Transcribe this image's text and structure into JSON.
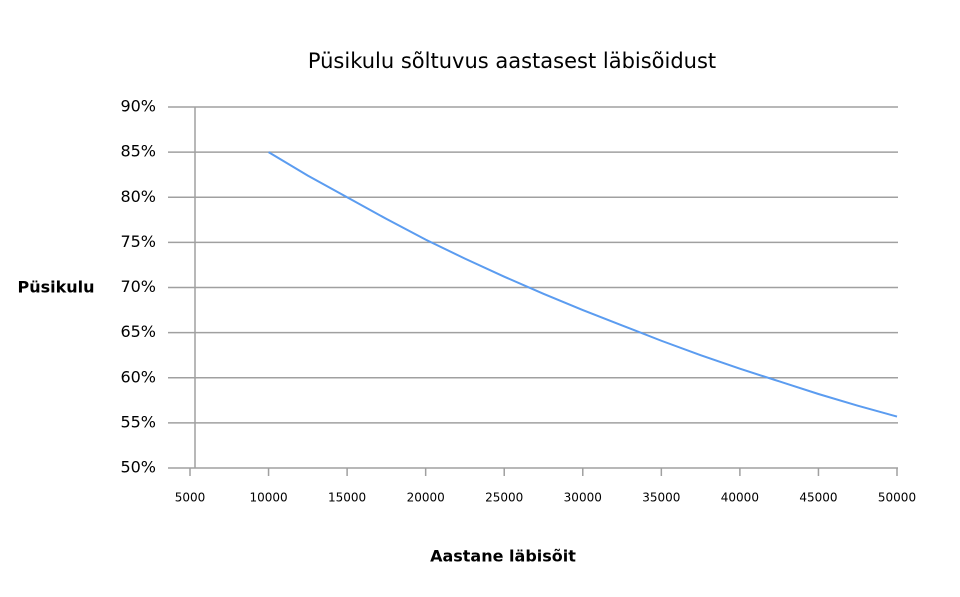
{
  "chart_data": {
    "type": "line",
    "title": "Püsikulu sõltuvus aastasest läbisõidust",
    "x_label": "Aastane läbisõit",
    "y_label": "Püsikulu",
    "x": [
      10000,
      12500,
      15000,
      17500,
      20000,
      22500,
      25000,
      27500,
      30000,
      32500,
      35000,
      37500,
      40000,
      42500,
      45000,
      47500,
      50000
    ],
    "series": [
      {
        "name": "Püsikulu",
        "color": "#5b9cf0",
        "values": [
          85,
          82.4,
          80,
          77.6,
          75.3,
          73.2,
          71.2,
          69.3,
          67.5,
          65.8,
          64.1,
          62.5,
          61.0,
          59.6,
          58.2,
          56.9,
          55.7
        ]
      }
    ],
    "xlim": [
      5000,
      50000
    ],
    "xticks": [
      5000,
      10000,
      15000,
      20000,
      25000,
      30000,
      35000,
      40000,
      45000,
      50000
    ],
    "ylim": [
      50,
      90
    ],
    "yticks": [
      {
        "value": 50,
        "label": "50%"
      },
      {
        "value": 55,
        "label": "55%"
      },
      {
        "value": 60,
        "label": "60%"
      },
      {
        "value": 65,
        "label": "65%"
      },
      {
        "value": 70,
        "label": "70%"
      },
      {
        "value": 75,
        "label": "75%"
      },
      {
        "value": 80,
        "label": "80%"
      },
      {
        "value": 85,
        "label": "85%"
      },
      {
        "value": 90,
        "label": "90%"
      }
    ],
    "grid": true
  }
}
